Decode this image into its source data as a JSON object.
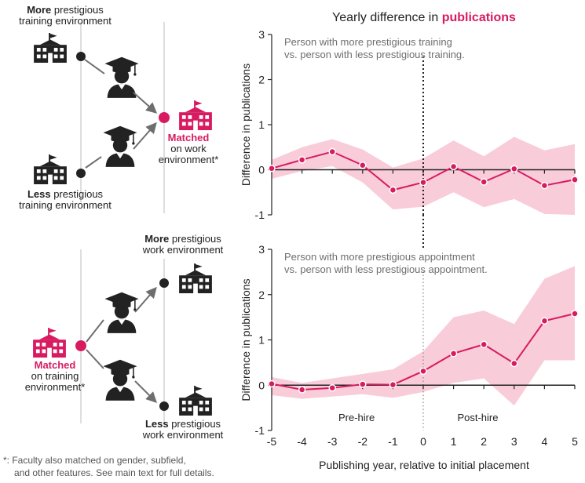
{
  "colors": {
    "accent": "#d81b60",
    "band": "#f8c6d6",
    "ink": "#222222",
    "muted": "#6e6e6e",
    "divider": "#c8c8c8"
  },
  "figure": {
    "title_prefix": "Yearly difference in ",
    "title_emph": "publications",
    "footnote_1": "*: Faculty also matched on gender, subfield,",
    "footnote_2": "and other features. See main text for full details.",
    "xlabel": "Publishing year, relative to initial placement",
    "pre_hire": "Pre-hire",
    "post_hire": "Post-hire"
  },
  "diagram_top": {
    "more_bold": "More",
    "more_rest": " prestigious",
    "more_line2": "training environment",
    "less_bold": "Less",
    "less_rest": " prestigious",
    "less_line2": "training environment",
    "matched_bold": "Matched",
    "matched_line2": "on work",
    "matched_line3": "environment*"
  },
  "diagram_bottom": {
    "more_bold": "More",
    "more_rest": " prestigious",
    "more_line2": "work environment",
    "less_bold": "Less",
    "less_rest": " prestigious",
    "less_line2": "work environment",
    "matched_bold": "Matched",
    "matched_line2": "on training",
    "matched_line3": "environment*"
  },
  "chart_data": [
    {
      "type": "line",
      "ylabel": "Difference in publications",
      "annotation_1": "Person with more prestigious training",
      "annotation_2": "vs. person with less prestigious training.",
      "x": [
        -5,
        -4,
        -3,
        -2,
        -1,
        0,
        1,
        2,
        3,
        4,
        5
      ],
      "values": [
        0.03,
        0.22,
        0.4,
        0.1,
        -0.45,
        -0.28,
        0.07,
        -0.27,
        0.02,
        -0.35,
        -0.22
      ],
      "ci_upper": [
        0.22,
        0.5,
        0.68,
        0.45,
        0.05,
        0.25,
        0.65,
        0.3,
        0.73,
        0.43,
        0.57
      ],
      "ci_lower": [
        -0.2,
        -0.03,
        0.08,
        -0.28,
        -0.88,
        -0.82,
        -0.5,
        -0.83,
        -0.65,
        -0.98,
        -1.0
      ],
      "xlim": [
        -5,
        5
      ],
      "ylim": [
        -1,
        3
      ],
      "yticks": [
        -1,
        0,
        1,
        2,
        3
      ]
    },
    {
      "type": "line",
      "ylabel": "Difference in publications",
      "annotation_1": "Person with more prestigious appointment",
      "annotation_2": "vs. person with less prestigious appointment.",
      "x": [
        -5,
        -4,
        -3,
        -2,
        -1,
        0,
        1,
        2,
        3,
        4,
        5
      ],
      "values": [
        0.03,
        -0.1,
        -0.06,
        0.02,
        0.01,
        0.31,
        0.7,
        0.9,
        0.48,
        1.42,
        1.58
      ],
      "ci_upper": [
        0.18,
        0.05,
        0.15,
        0.25,
        0.35,
        0.75,
        1.5,
        1.65,
        1.35,
        2.35,
        2.63
      ],
      "ci_lower": [
        -0.22,
        -0.3,
        -0.25,
        -0.2,
        -0.28,
        -0.15,
        0.05,
        0.15,
        -0.45,
        0.55,
        0.55
      ],
      "xlim": [
        -5,
        5
      ],
      "ylim": [
        -1,
        3
      ],
      "yticks": [
        -1,
        0,
        1,
        2,
        3
      ],
      "xticks": [
        -5,
        -4,
        -3,
        -2,
        -1,
        0,
        1,
        2,
        3,
        4,
        5
      ]
    }
  ]
}
